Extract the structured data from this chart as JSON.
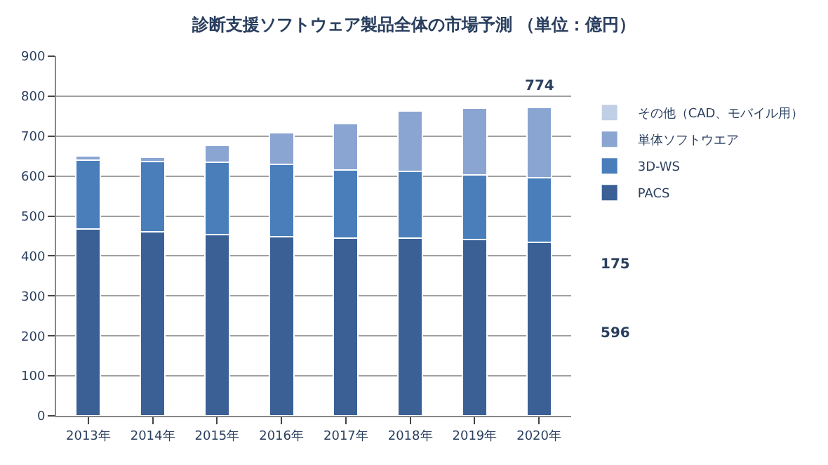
{
  "chart_data": {
    "type": "bar",
    "title": "診断支援ソフトウェア製品全体の市場予測 （単位：億円）",
    "categories": [
      "2013年",
      "2014年",
      "2015年",
      "2016年",
      "2017年",
      "2018年",
      "2019年",
      "2020年"
    ],
    "stacked": true,
    "series": [
      {
        "name": "PACS",
        "color": "#3a6096",
        "values": [
          467,
          460,
          453,
          449,
          445,
          445,
          441,
          435
        ]
      },
      {
        "name": "3D-WS",
        "color": "#4a7ebb",
        "values": [
          173,
          177,
          182,
          180,
          170,
          167,
          162,
          161
        ]
      },
      {
        "name": "単体ソフトウエア",
        "color": "#8aa5d2",
        "values": [
          11,
          10,
          42,
          79,
          116,
          151,
          167,
          175
        ]
      },
      {
        "name": "その他（CAD、モバイル用）",
        "color": "#c0cfe6",
        "values": [
          null,
          null,
          null,
          null,
          null,
          null,
          null,
          3
        ]
      }
    ],
    "ylim": [
      0,
      900
    ],
    "yticks": [
      0,
      100,
      200,
      300,
      400,
      500,
      600,
      700,
      800,
      900
    ],
    "grid": "y",
    "legend": "right",
    "annotations": [
      "774",
      "175",
      "596"
    ]
  }
}
